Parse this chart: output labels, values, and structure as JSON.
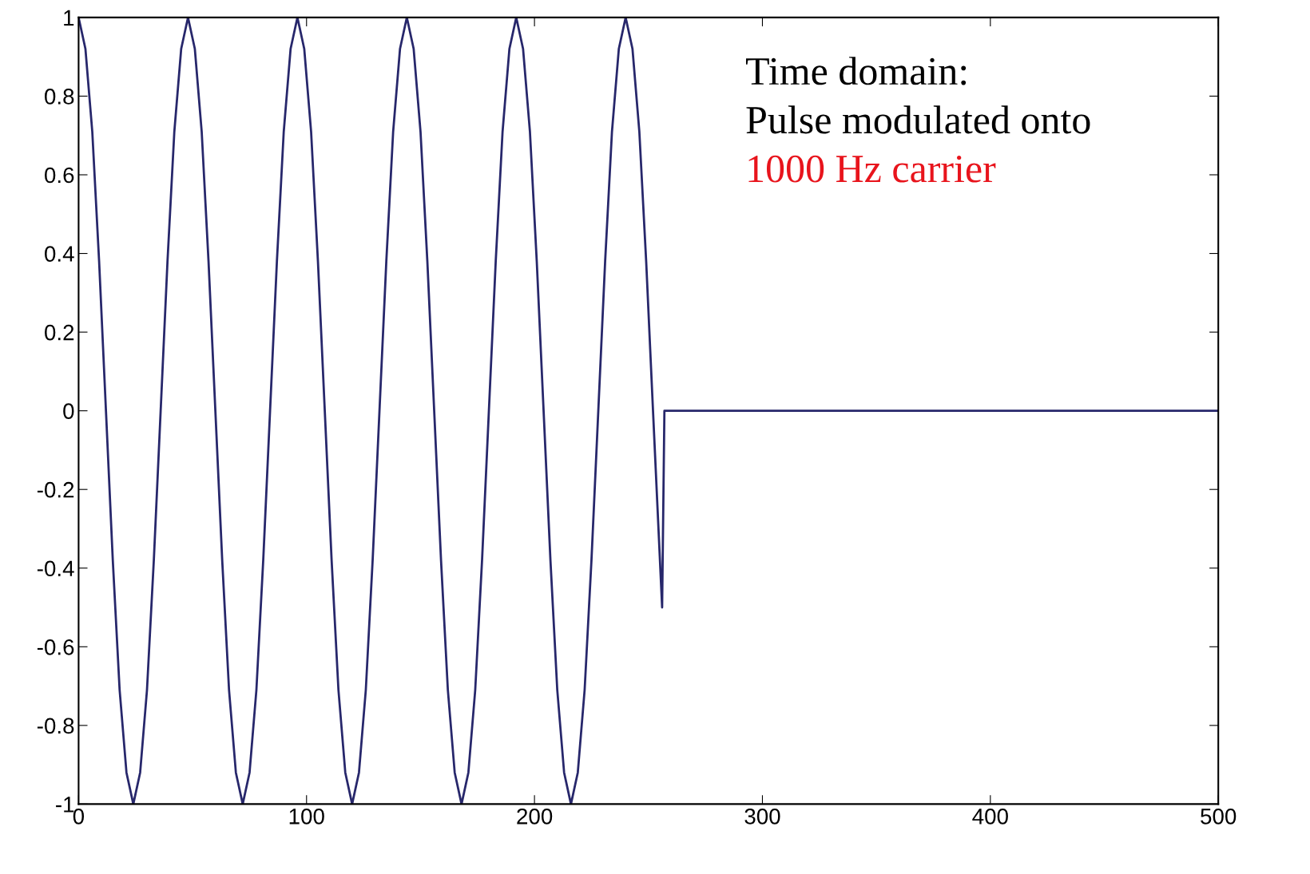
{
  "chart_data": {
    "type": "line",
    "x": [
      0,
      3,
      6,
      9,
      12,
      15,
      18,
      21,
      24,
      27,
      30,
      33,
      36,
      39,
      42,
      45,
      48,
      51,
      54,
      57,
      60,
      63,
      66,
      69,
      72,
      75,
      78,
      81,
      84,
      87,
      90,
      93,
      96,
      99,
      102,
      105,
      108,
      111,
      114,
      117,
      120,
      123,
      126,
      129,
      132,
      135,
      138,
      141,
      144,
      147,
      150,
      153,
      156,
      159,
      162,
      165,
      168,
      171,
      174,
      177,
      180,
      183,
      186,
      189,
      192,
      195,
      198,
      201,
      204,
      207,
      210,
      213,
      216,
      219,
      222,
      225,
      228,
      231,
      234,
      237,
      240,
      243,
      246,
      249,
      252,
      256,
      257,
      500
    ],
    "series": [
      {
        "color": "#27276b",
        "values": [
          1,
          0.92,
          0.71,
          0.38,
          0,
          -0.38,
          -0.71,
          -0.92,
          -1,
          -0.92,
          -0.71,
          -0.38,
          0,
          0.38,
          0.71,
          0.92,
          1,
          0.92,
          0.71,
          0.38,
          0,
          -0.38,
          -0.71,
          -0.92,
          -1,
          -0.92,
          -0.71,
          -0.38,
          0,
          0.38,
          0.71,
          0.92,
          1,
          0.92,
          0.71,
          0.38,
          0,
          -0.38,
          -0.71,
          -0.92,
          -1,
          -0.92,
          -0.71,
          -0.38,
          0,
          0.38,
          0.71,
          0.92,
          1,
          0.92,
          0.71,
          0.38,
          0,
          -0.38,
          -0.71,
          -0.92,
          -1,
          -0.92,
          -0.71,
          -0.38,
          0,
          0.38,
          0.71,
          0.92,
          1,
          0.92,
          0.71,
          0.38,
          0,
          -0.38,
          -0.71,
          -0.92,
          -1,
          -0.92,
          -0.71,
          -0.38,
          0,
          0.38,
          0.71,
          0.92,
          1,
          0.92,
          0.71,
          0.38,
          0,
          -0.5,
          0,
          0
        ]
      }
    ],
    "xlim": [
      0,
      500
    ],
    "xticks": [
      0,
      100,
      200,
      300,
      400,
      500
    ],
    "ylim": [
      -1,
      1
    ],
    "yticks": [
      -1,
      -0.8,
      -0.6,
      -0.4,
      -0.2,
      0,
      0.2,
      0.4,
      0.6,
      0.8,
      1
    ],
    "grid": false,
    "marker": "none",
    "line_style": "solid",
    "annotations": [
      "Time domain:",
      "Pulse modulated onto",
      "1000 Hz carrier"
    ]
  }
}
